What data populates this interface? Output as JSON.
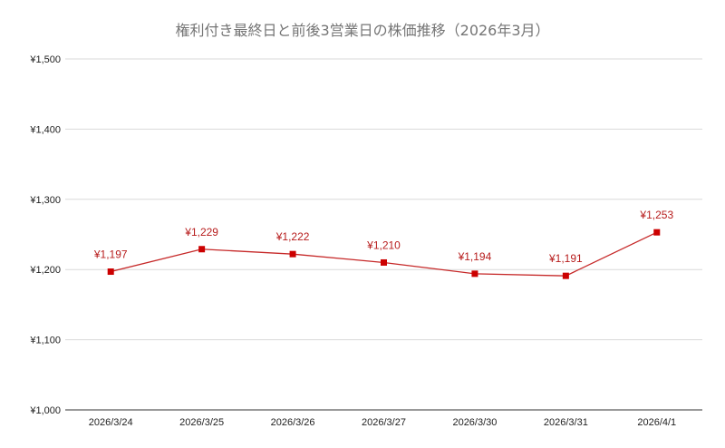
{
  "chart_data": {
    "type": "line",
    "title": "権利付き最終日と前後3営業日の株価推移（2026年3月）",
    "xlabel": "",
    "ylabel": "",
    "categories": [
      "2026/3/24",
      "2026/3/25",
      "2026/3/26",
      "2026/3/27",
      "2026/3/30",
      "2026/3/31",
      "2026/4/1"
    ],
    "values": [
      1197,
      1229,
      1222,
      1210,
      1194,
      1191,
      1253
    ],
    "data_labels": [
      "¥1,197",
      "¥1,229",
      "¥1,222",
      "¥1,210",
      "¥1,194",
      "¥1,191",
      "¥1,253"
    ],
    "ylim": [
      1000,
      1500
    ],
    "yticks": [
      1000,
      1100,
      1200,
      1300,
      1400,
      1500
    ],
    "ytick_labels": [
      "¥1,000",
      "¥1,100",
      "¥1,200",
      "¥1,300",
      "¥1,400",
      "¥1,500"
    ],
    "grid": true,
    "legend": "none",
    "colors": {
      "series": "#cc0000",
      "line": "#c62828",
      "data_label": "#b71c1c",
      "grid": "#d9d9d9",
      "title": "#757575"
    }
  }
}
